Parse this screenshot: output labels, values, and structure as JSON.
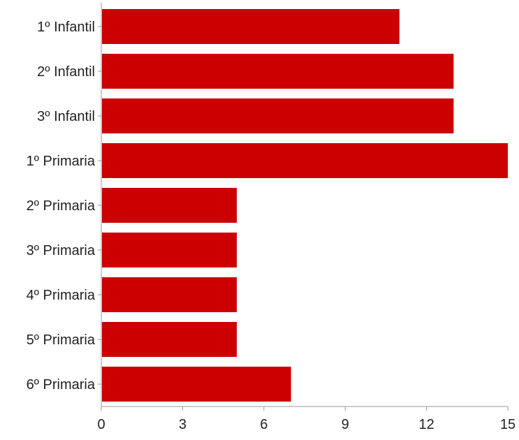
{
  "chart_data": {
    "type": "bar",
    "orientation": "horizontal",
    "categories": [
      "1º Infantil",
      "2º Infantil",
      "3º Infantil",
      "1º Primaria",
      "2º Primaria",
      "3º Primaria",
      "4º Primaria",
      "5º Primaria",
      "6º Primaria"
    ],
    "values": [
      11,
      13,
      13,
      15,
      5,
      5,
      5,
      5,
      7
    ],
    "xlim": [
      0,
      15
    ],
    "xticks": [
      0,
      3,
      6,
      9,
      12,
      15
    ],
    "grid": false,
    "bar_color": "#cc0000",
    "axis_color": "#999999"
  }
}
